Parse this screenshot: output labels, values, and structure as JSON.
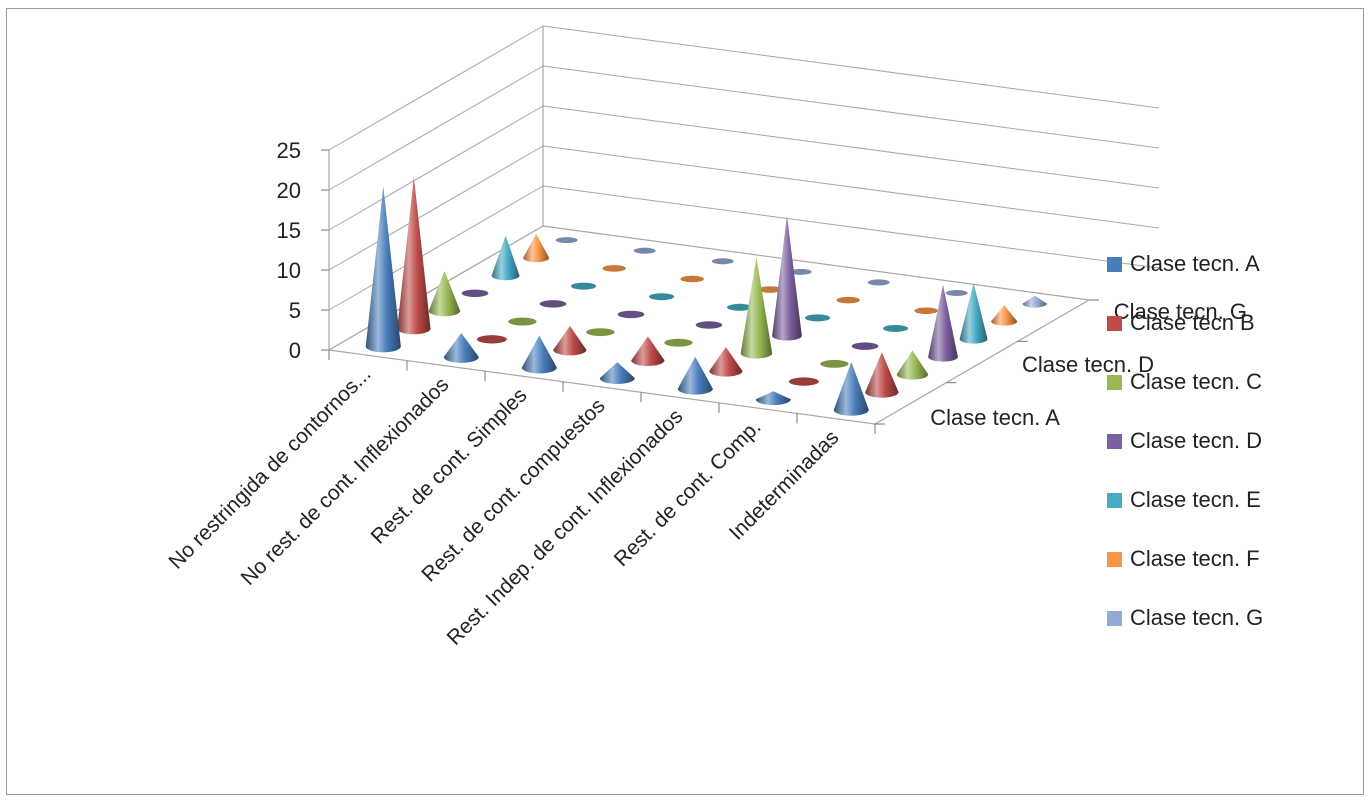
{
  "chart_data": {
    "type": "bar",
    "subtype": "3d-cone",
    "title": "",
    "xlabel": "",
    "ylabel": "",
    "ylim": [
      0,
      25
    ],
    "yticks": [
      0,
      5,
      10,
      15,
      20,
      25
    ],
    "grid": true,
    "legend_position": "right",
    "categories": [
      "No restringida de contornos...",
      "No rest. de cont. Inflexionados",
      "Rest. de cont. Simples",
      "Rest. de cont. compuestos",
      "Rest. Indep. de cont. Inflexionados",
      "Rest. de cont. Comp.",
      "Indeterminadas"
    ],
    "depth_labels": [
      "Clase tecn. A",
      "Clase tecn. D",
      "Clase tecn. G"
    ],
    "series": [
      {
        "name": "Clase tecn. A",
        "color": "#4a7ebb",
        "values": [
          20,
          3,
          4,
          2,
          4,
          1,
          6
        ]
      },
      {
        "name": "Clase tecn B",
        "color": "#be4b48",
        "values": [
          19,
          0,
          3,
          3,
          3,
          0,
          5
        ]
      },
      {
        "name": "Clase tecn. C",
        "color": "#98b954",
        "values": [
          5,
          0,
          0,
          0,
          12,
          0,
          3
        ]
      },
      {
        "name": "Clase tecn. D",
        "color": "#7d60a0",
        "values": [
          0,
          0,
          0,
          0,
          15,
          0,
          9
        ]
      },
      {
        "name": "Clase tecn. E",
        "color": "#46aac5",
        "values": [
          5,
          0,
          0,
          0,
          0,
          0,
          7
        ]
      },
      {
        "name": "Clase tecn. F",
        "color": "#f79646",
        "values": [
          3,
          0,
          0,
          0,
          0,
          0,
          2
        ]
      },
      {
        "name": "Clase tecn. G",
        "color": "#94aad6",
        "values": [
          0,
          0,
          0,
          0,
          0,
          0,
          1
        ]
      }
    ]
  }
}
